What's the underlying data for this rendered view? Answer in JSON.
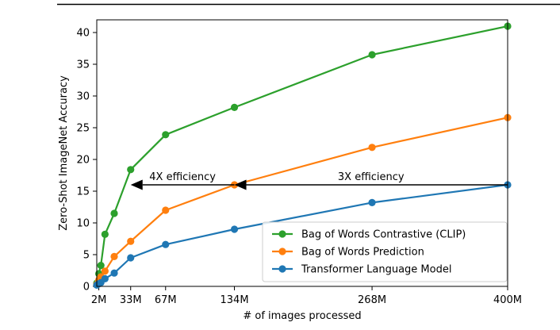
{
  "chart_data": {
    "type": "line",
    "xlabel": "# of images processed",
    "ylabel": "Zero-Shot ImageNet Accuracy",
    "xlim": [
      0,
      400
    ],
    "ylim": [
      0,
      42
    ],
    "x_ticks": [
      {
        "value": 2,
        "label": "2M"
      },
      {
        "value": 33,
        "label": "33M"
      },
      {
        "value": 67,
        "label": "67M"
      },
      {
        "value": 134,
        "label": "134M"
      },
      {
        "value": 268,
        "label": "268M"
      },
      {
        "value": 400,
        "label": "400M"
      }
    ],
    "y_ticks": [
      0,
      5,
      10,
      15,
      20,
      25,
      30,
      35,
      40
    ],
    "grid": false,
    "legend_position": "bottom-right",
    "series": [
      {
        "name": "Bag of Words Contrastive (CLIP)",
        "color": "#2ca02c",
        "points": [
          [
            0,
            0.5
          ],
          [
            2,
            2.0
          ],
          [
            4,
            3.3
          ],
          [
            8,
            8.2
          ],
          [
            17,
            11.5
          ],
          [
            33,
            18.4
          ],
          [
            67,
            23.9
          ],
          [
            134,
            28.2
          ],
          [
            268,
            36.5
          ],
          [
            400,
            41.0
          ]
        ]
      },
      {
        "name": "Bag of Words Prediction",
        "color": "#ff7f0e",
        "points": [
          [
            0,
            0.3
          ],
          [
            2,
            1.0
          ],
          [
            4,
            1.5
          ],
          [
            8,
            2.4
          ],
          [
            17,
            4.7
          ],
          [
            33,
            7.1
          ],
          [
            67,
            12.0
          ],
          [
            134,
            16.0
          ],
          [
            268,
            21.9
          ],
          [
            400,
            26.6
          ]
        ]
      },
      {
        "name": "Transformer Language Model",
        "color": "#1f77b4",
        "points": [
          [
            0,
            0.2
          ],
          [
            2,
            0.4
          ],
          [
            4,
            0.6
          ],
          [
            8,
            1.2
          ],
          [
            17,
            2.1
          ],
          [
            33,
            4.5
          ],
          [
            67,
            6.6
          ],
          [
            134,
            9.0
          ],
          [
            268,
            13.2
          ],
          [
            400,
            16.0
          ]
        ]
      }
    ],
    "annotations": [
      {
        "text": "4X efficiency",
        "y": 16.0,
        "x_from": 134,
        "x_to": 33
      },
      {
        "text": "3X efficiency",
        "y": 16.0,
        "x_from": 400,
        "x_to": 134
      }
    ]
  }
}
